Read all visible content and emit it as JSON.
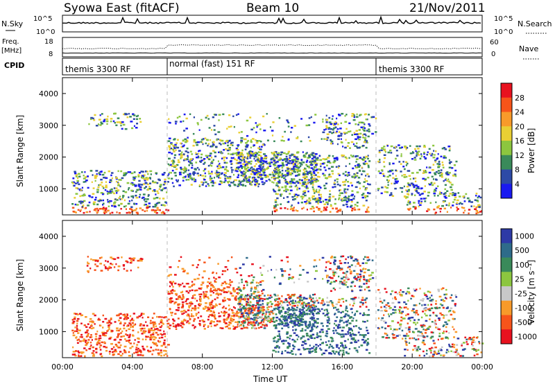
{
  "header": {
    "station": "Syowa East (fitACF)",
    "beam": "Beam 10",
    "date": "21/Nov/2011"
  },
  "noise_panel": {
    "left_label": "N.Sky",
    "right_label": "N.Search",
    "ticks_top": "10^5",
    "ticks_bottom": "10^0"
  },
  "freq_panel": {
    "left_label_1": "Freq.",
    "left_label_2": "[MHz]",
    "left_top": "18",
    "left_bottom": "8",
    "right_label": "Nave",
    "right_top": "60",
    "right_bottom": "0"
  },
  "cpid_panel": {
    "label": "CPID",
    "segments": [
      {
        "text": "themis 3300 RF",
        "start_hour": 0,
        "end_hour": 6
      },
      {
        "text": "normal (fast) 151 RF",
        "start_hour": 6,
        "end_hour": 18
      },
      {
        "text": "themis 3300 RF",
        "start_hour": 18,
        "end_hour": 24
      }
    ]
  },
  "power_panel": {
    "ylabel": "Slant Range [km]",
    "colorbar_label": "Power [dB]",
    "colorbar_ticks": [
      "28",
      "24",
      "20",
      "16",
      "12",
      "8",
      "4"
    ],
    "colors": [
      "#e8121f",
      "#f7541a",
      "#f89a2a",
      "#e9cf34",
      "#8cc63f",
      "#3a8a5a",
      "#2d4aa6",
      "#1a1af0"
    ]
  },
  "velocity_panel": {
    "ylabel": "Slant Range [km]",
    "colorbar_label": "Velocity [m s⁻¹]",
    "colorbar_ticks": [
      "1000",
      "500",
      "100",
      "25",
      "-25",
      "-100",
      "-500",
      "-1000"
    ],
    "colors": [
      "#2d3aa6",
      "#2e6b8a",
      "#3a8a5a",
      "#8cc63f",
      "#c8c8c8",
      "#f89a2a",
      "#f7541a",
      "#e8121f"
    ]
  },
  "axes": {
    "x_ticks": [
      "00:00",
      "04:00",
      "08:00",
      "12:00",
      "16:00",
      "20:00",
      "00:00"
    ],
    "x_label": "Time UT",
    "y_ticks": [
      "1000",
      "2000",
      "3000",
      "4000"
    ]
  },
  "chart_data": {
    "type": "heatmap",
    "title": "Syowa East (fitACF)",
    "subtitle": "Beam 10",
    "date": "21/Nov/2011",
    "xlabel": "Time UT",
    "ylabel": "Slant Range [km]",
    "xlim_hours": [
      0,
      24
    ],
    "ylim_km": [
      180,
      4500
    ],
    "panels": [
      {
        "name": "Power [dB]",
        "scale": [
          4,
          28
        ],
        "regions": [
          {
            "t": [
              0,
              6
            ],
            "range_km": [
              250,
              1500
            ],
            "level": "mixed"
          },
          {
            "t": [
              6,
              12
            ],
            "range_km": [
              1000,
              2500
            ],
            "level": "mixed"
          },
          {
            "t": [
              12,
              18
            ],
            "range_km": [
              250,
              2200
            ],
            "level": "mixed"
          },
          {
            "t": [
              18,
              24
            ],
            "range_km": [
              250,
              2400
            ],
            "level": "mixed"
          }
        ]
      },
      {
        "name": "Velocity [m s⁻¹]",
        "scale": [
          -1000,
          1000
        ],
        "regions": [
          {
            "t": [
              0,
              6
            ],
            "range_km": [
              250,
              1500
            ],
            "level": "negative"
          },
          {
            "t": [
              6,
              12
            ],
            "range_km": [
              1000,
              2500
            ],
            "level": "mixed"
          },
          {
            "t": [
              12,
              18
            ],
            "range_km": [
              250,
              2200
            ],
            "level": "positive"
          },
          {
            "t": [
              18,
              24
            ],
            "range_km": [
              250,
              2400
            ],
            "level": "mixed"
          }
        ]
      }
    ]
  }
}
